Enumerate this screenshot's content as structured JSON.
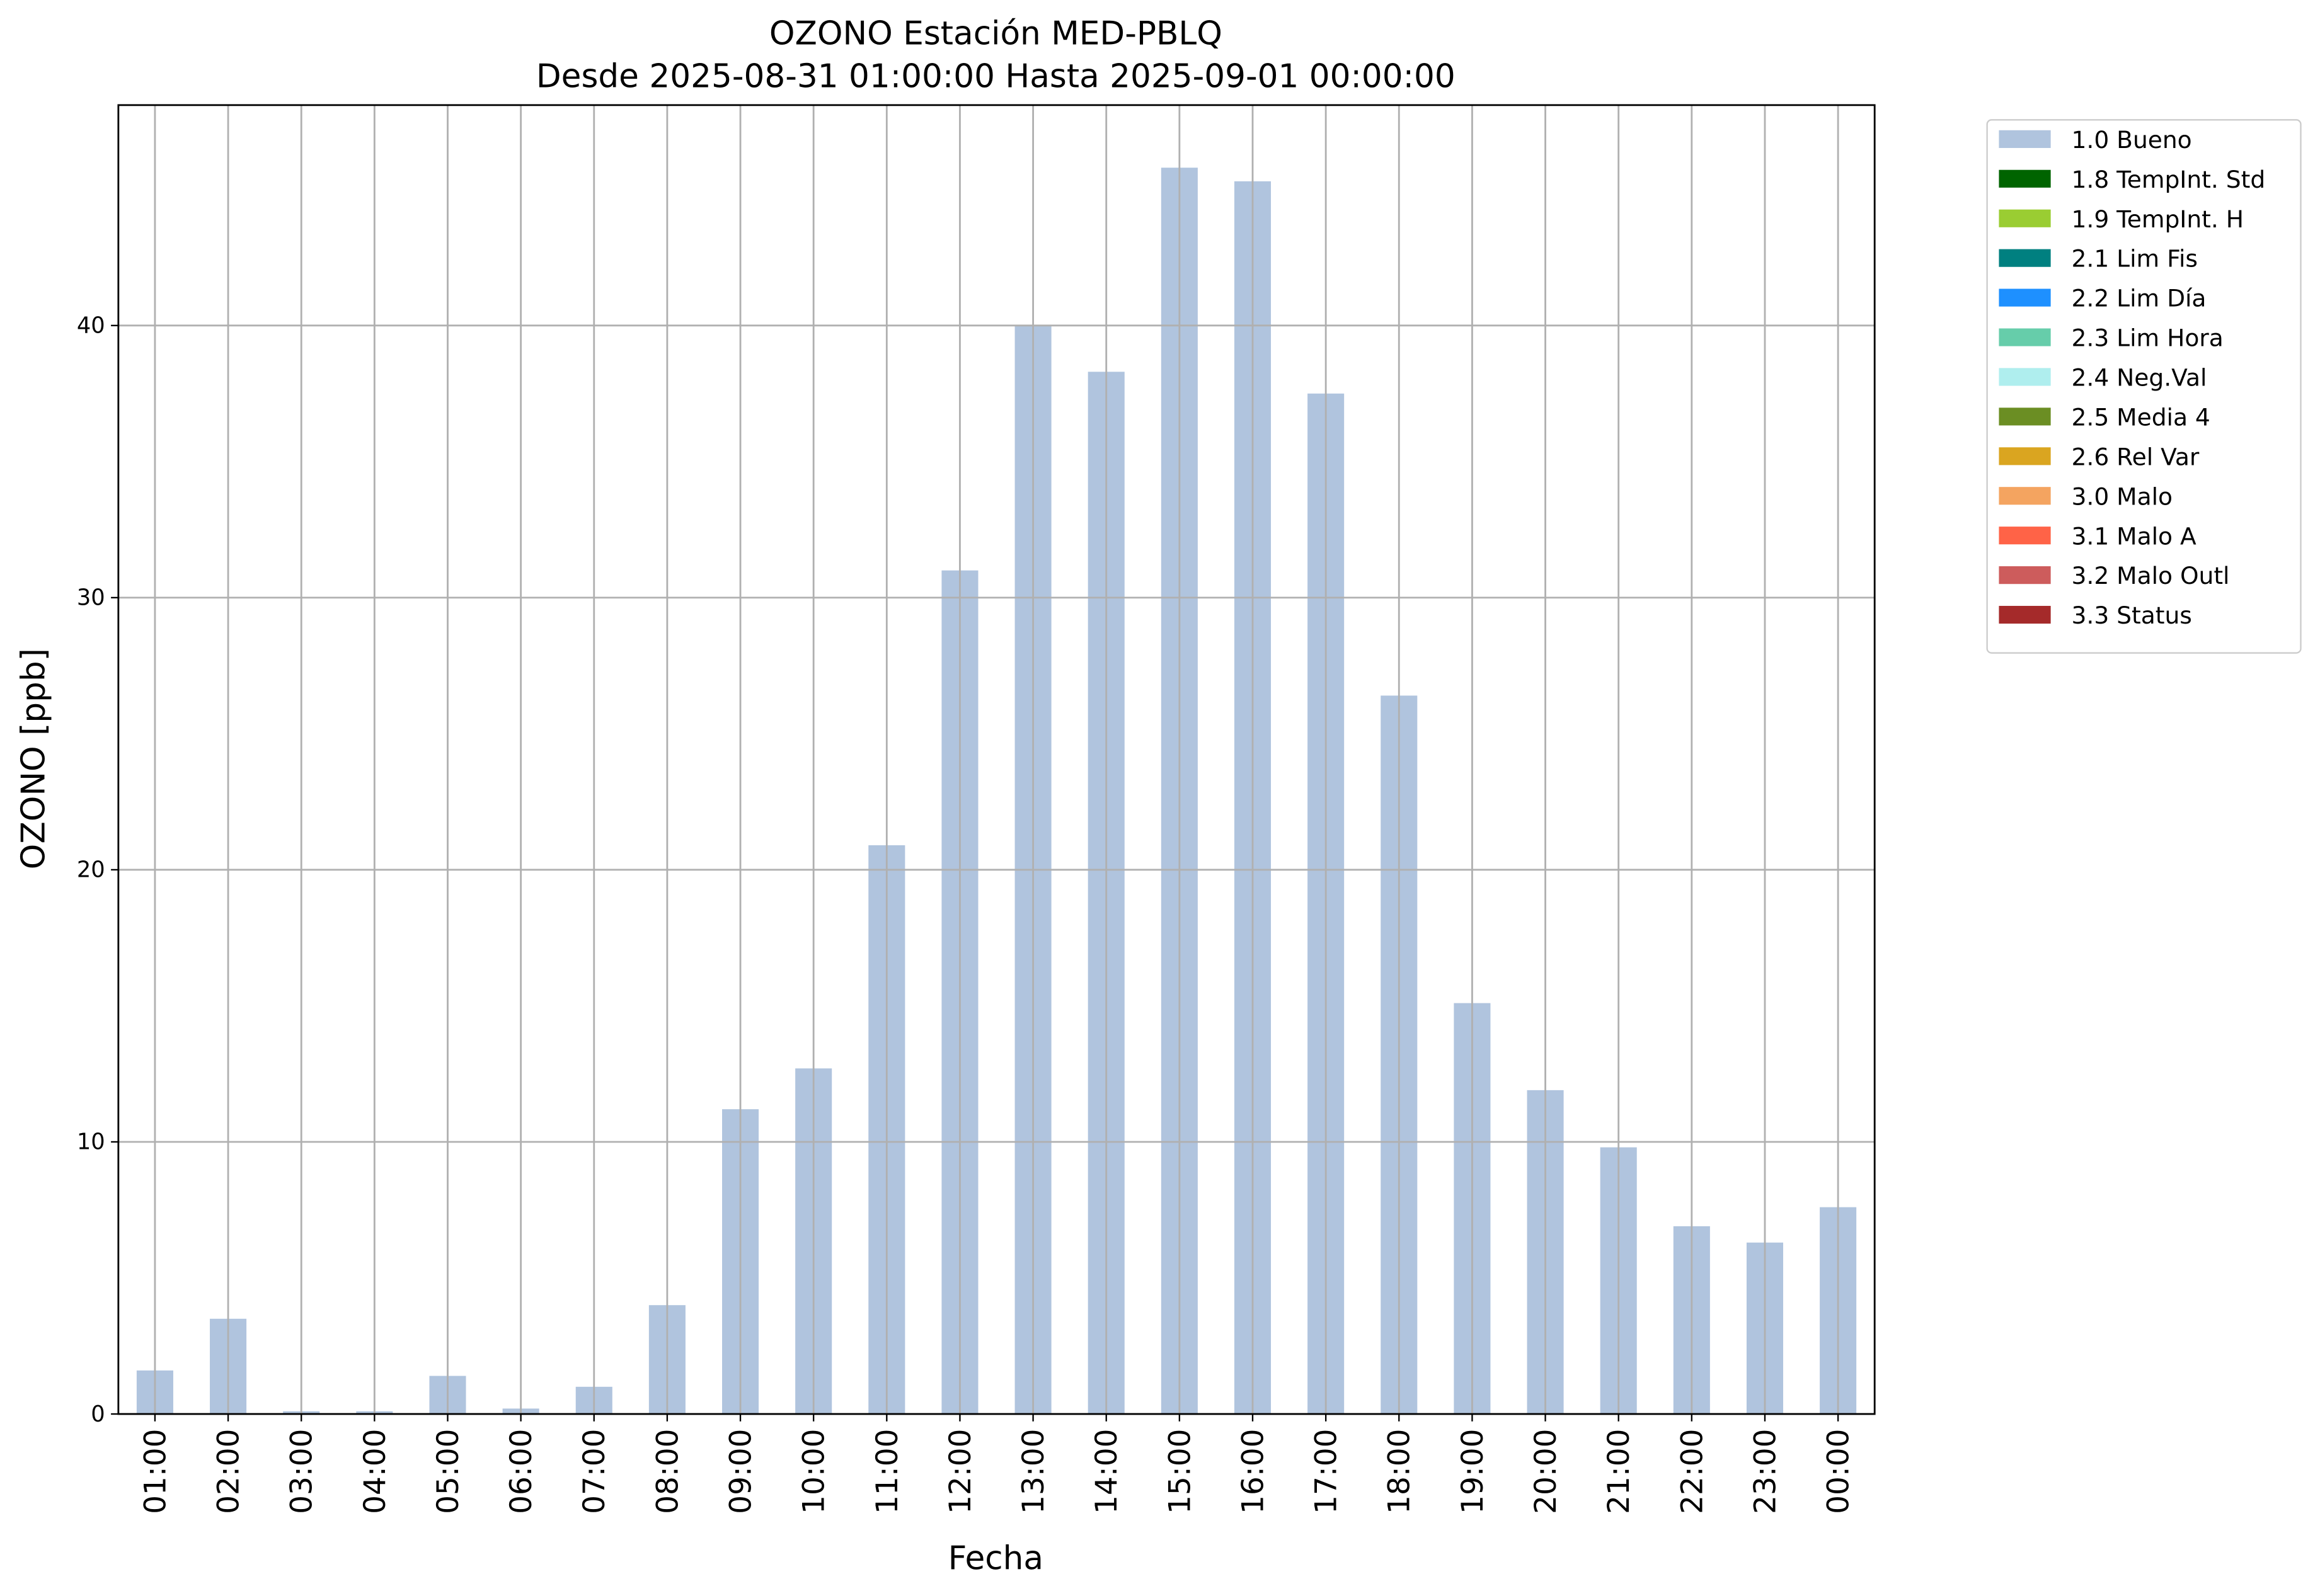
{
  "chart_data": {
    "type": "bar",
    "title": "OZONO Estación MED-PBLQ",
    "subtitle": "Desde 2025-08-31 01:00:00 Hasta 2025-09-01 00:00:00",
    "x_label": "Fecha",
    "y_label": "OZONO [ppb]",
    "categories": [
      "01:00",
      "02:00",
      "03:00",
      "04:00",
      "05:00",
      "06:00",
      "07:00",
      "08:00",
      "09:00",
      "10:00",
      "11:00",
      "12:00",
      "13:00",
      "14:00",
      "15:00",
      "16:00",
      "17:00",
      "18:00",
      "19:00",
      "20:00",
      "21:00",
      "22:00",
      "23:00",
      "00:00"
    ],
    "series": [
      {
        "name": "1.0 Bueno",
        "color": "#b0c4de",
        "values": [
          1.6,
          3.5,
          0.1,
          0.1,
          1.4,
          0.2,
          1.0,
          4.0,
          11.2,
          12.7,
          20.9,
          31.0,
          40.0,
          38.3,
          45.8,
          45.3,
          37.5,
          26.4,
          15.1,
          11.9,
          9.8,
          6.9,
          6.3,
          7.6
        ]
      },
      {
        "name": "1.8 TempInt. Std",
        "color": "#006400"
      },
      {
        "name": "1.9 TempInt. H",
        "color": "#9acd32"
      },
      {
        "name": "2.1 Lim Fis",
        "color": "#008080"
      },
      {
        "name": "2.2 Lim Día",
        "color": "#1e90ff"
      },
      {
        "name": "2.3 Lim Hora",
        "color": "#66cdaa"
      },
      {
        "name": "2.4 Neg.Val",
        "color": "#afeeee"
      },
      {
        "name": "2.5 Media 4",
        "color": "#6b8e23"
      },
      {
        "name": "2.6 Rel Var",
        "color": "#daa520"
      },
      {
        "name": "3.0 Malo",
        "color": "#f4a460"
      },
      {
        "name": "3.1 Malo A",
        "color": "#ff6347"
      },
      {
        "name": "3.2 Malo Outl",
        "color": "#cd5c5c"
      },
      {
        "name": "3.3 Status",
        "color": "#a52a2a"
      }
    ],
    "ylim": [
      0,
      48.1
    ],
    "yticks": [
      0,
      10,
      20,
      30,
      40
    ],
    "grid": true,
    "legend_position": "outside-upper-right"
  }
}
